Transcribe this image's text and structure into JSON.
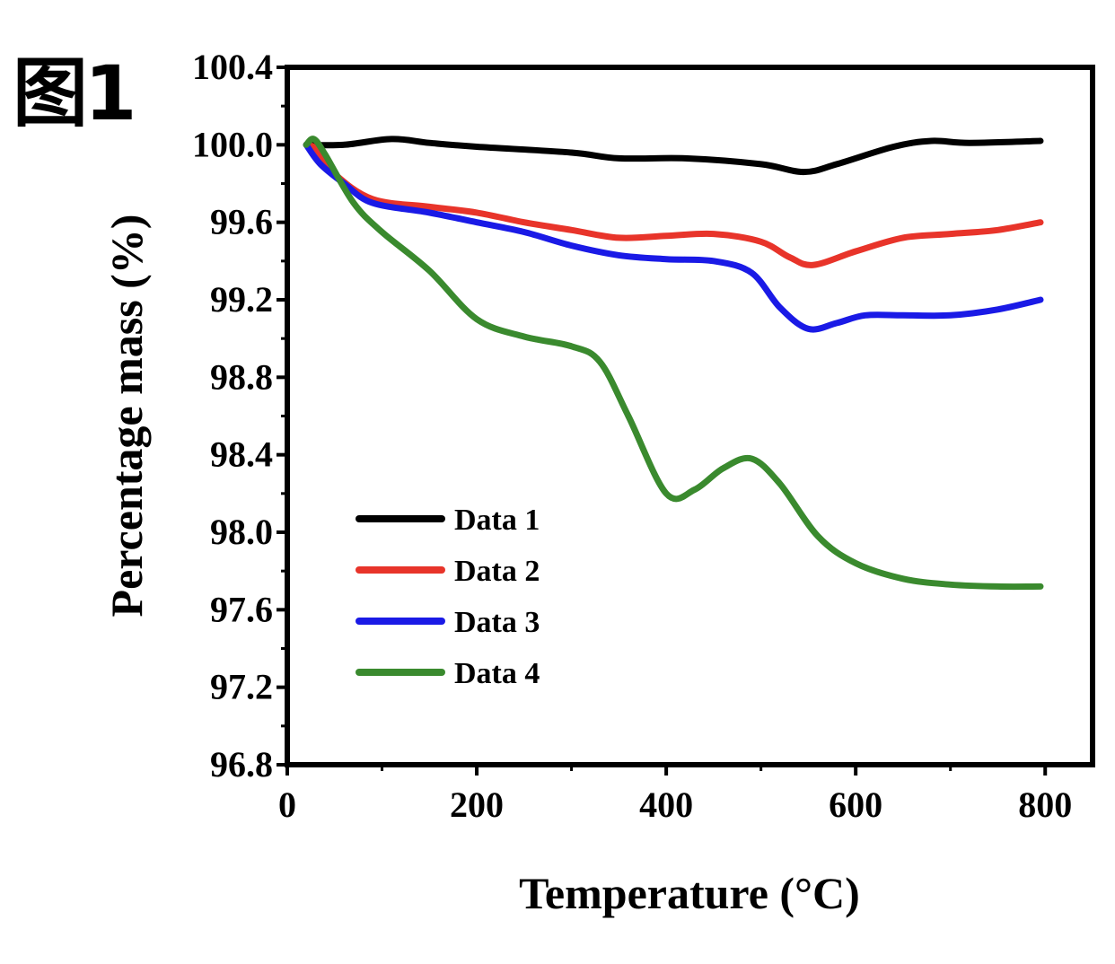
{
  "figure_label": "图1",
  "chart_data": {
    "type": "line",
    "title": "",
    "xlabel": "Temperature (°C)",
    "ylabel": "Percentage mass (%)",
    "xlim": [
      0,
      850
    ],
    "ylim": [
      96.8,
      100.4
    ],
    "xticks": [
      0,
      200,
      400,
      600,
      800
    ],
    "yticks": [
      96.8,
      97.2,
      97.6,
      98.0,
      98.4,
      98.8,
      99.2,
      99.6,
      100.0,
      100.4
    ],
    "xtick_labels": [
      "0",
      "200",
      "400",
      "600",
      "800"
    ],
    "ytick_labels": [
      "96.8",
      "97.2",
      "97.6",
      "98.0",
      "98.4",
      "98.8",
      "99.2",
      "99.6",
      "100.0",
      "100.4"
    ],
    "legend_position": "lower-left",
    "series": [
      {
        "name": "Data 1",
        "color": "#000000",
        "x": [
          20,
          60,
          110,
          150,
          200,
          300,
          350,
          420,
          500,
          545,
          580,
          640,
          680,
          720,
          795
        ],
        "y": [
          100.0,
          100.0,
          100.03,
          100.01,
          99.99,
          99.96,
          99.93,
          99.93,
          99.9,
          99.86,
          99.9,
          99.99,
          100.02,
          100.01,
          100.02
        ]
      },
      {
        "name": "Data 2",
        "color": "#e8342a",
        "x": [
          20,
          30,
          50,
          90,
          150,
          200,
          250,
          300,
          350,
          400,
          450,
          500,
          530,
          555,
          600,
          650,
          700,
          750,
          795
        ],
        "y": [
          100.0,
          99.98,
          99.85,
          99.72,
          99.68,
          99.65,
          99.6,
          99.56,
          99.52,
          99.53,
          99.54,
          99.5,
          99.42,
          99.38,
          99.45,
          99.52,
          99.54,
          99.56,
          99.6
        ]
      },
      {
        "name": "Data 3",
        "color": "#1a1ae6",
        "x": [
          20,
          35,
          60,
          90,
          150,
          200,
          250,
          300,
          350,
          400,
          450,
          490,
          520,
          550,
          580,
          610,
          650,
          700,
          750,
          795
        ],
        "y": [
          100.0,
          99.9,
          99.8,
          99.7,
          99.65,
          99.6,
          99.55,
          99.48,
          99.43,
          99.41,
          99.4,
          99.34,
          99.16,
          99.05,
          99.08,
          99.12,
          99.12,
          99.12,
          99.15,
          99.2
        ]
      },
      {
        "name": "Data 4",
        "color": "#3a8a2e",
        "x": [
          20,
          28,
          40,
          70,
          100,
          150,
          200,
          250,
          300,
          330,
          360,
          400,
          430,
          460,
          490,
          520,
          560,
          600,
          650,
          700,
          750,
          795
        ],
        "y": [
          100.0,
          100.03,
          99.95,
          99.7,
          99.55,
          99.35,
          99.1,
          99.01,
          98.96,
          98.88,
          98.6,
          98.2,
          98.22,
          98.33,
          98.38,
          98.25,
          97.98,
          97.84,
          97.76,
          97.73,
          97.72,
          97.72
        ]
      }
    ]
  }
}
